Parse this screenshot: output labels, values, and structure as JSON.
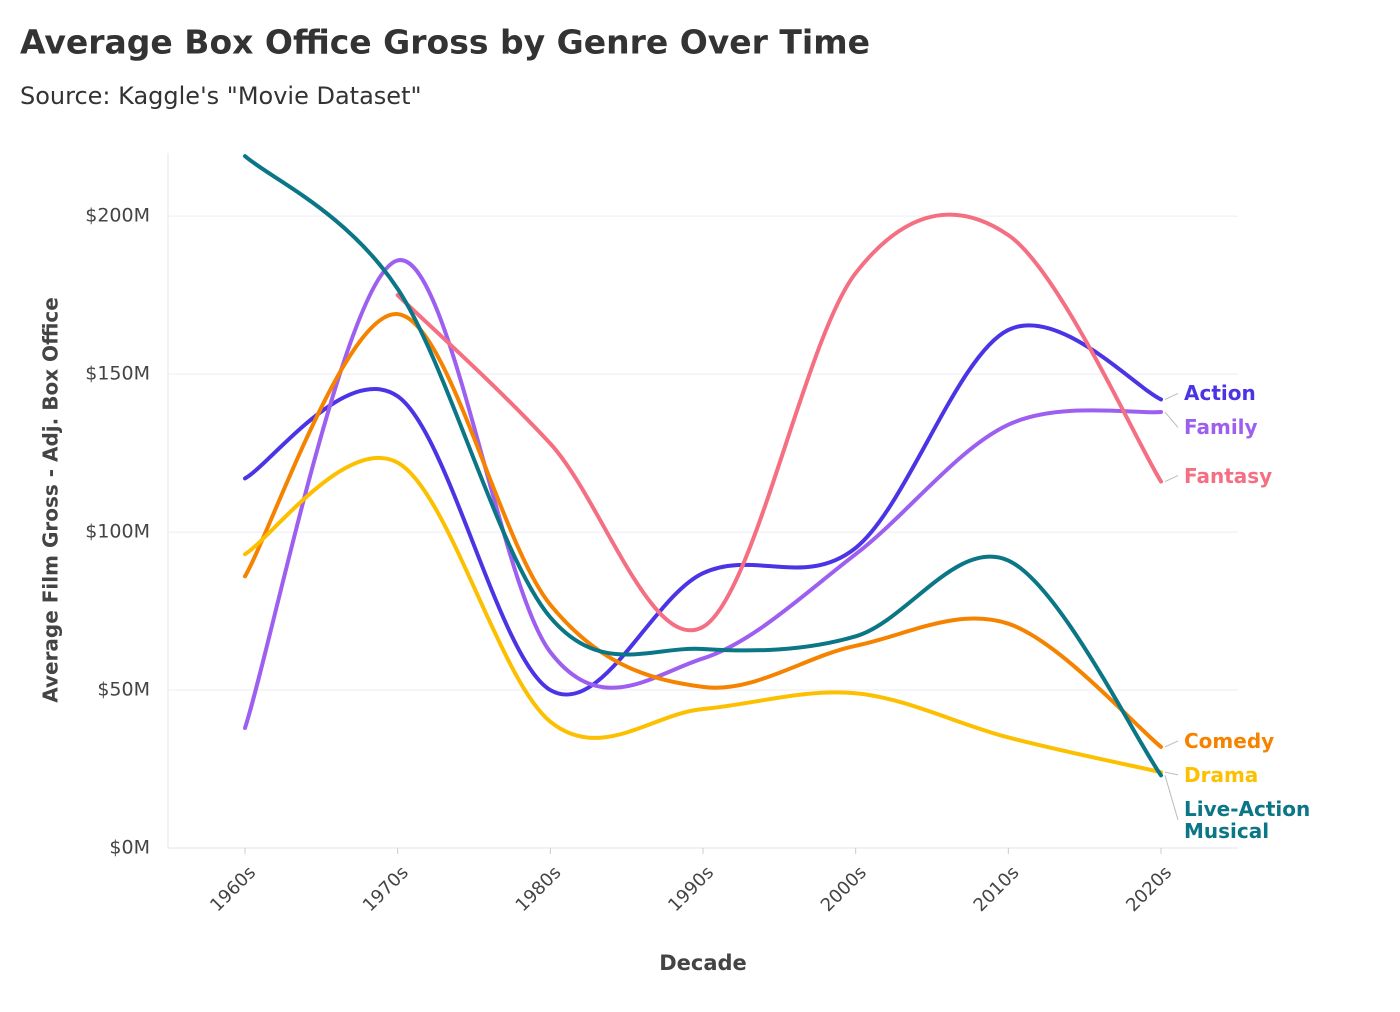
{
  "chart_data": {
    "type": "line",
    "title": "Average Box Office Gross by Genre Over Time",
    "subtitle": "Source: Kaggle's \"Movie Dataset\"",
    "x_label": "Decade",
    "y_label": "Average Film Gross - Adj. Box Office",
    "categories": [
      "1960s",
      "1970s",
      "1980s",
      "1990s",
      "2000s",
      "2010s",
      "2020s"
    ],
    "ylim": [
      0,
      220
    ],
    "yticks": [
      {
        "value": 0,
        "label": "$0M"
      },
      {
        "value": 50,
        "label": "$50M"
      },
      {
        "value": 100,
        "label": "$100M"
      },
      {
        "value": 150,
        "label": "$150M"
      },
      {
        "value": 200,
        "label": "$200M"
      }
    ],
    "grid": true,
    "series": [
      {
        "name": "Action",
        "color": "#4b34e6",
        "values": [
          117,
          143,
          50,
          87,
          95,
          164,
          142
        ]
      },
      {
        "name": "Family",
        "color": "#9d5ff0",
        "values": [
          38,
          186,
          62,
          60,
          93,
          134,
          138
        ]
      },
      {
        "name": "Fantasy",
        "color": "#f56f82",
        "values": [
          null,
          175,
          128,
          70,
          182,
          194,
          116
        ]
      },
      {
        "name": "Comedy",
        "color": "#f58300",
        "values": [
          86,
          169,
          77,
          51,
          64,
          71,
          32
        ]
      },
      {
        "name": "Drama",
        "color": "#fcc000",
        "values": [
          93,
          122,
          40,
          44,
          49,
          35,
          24
        ]
      },
      {
        "name": "Live-Action Musical",
        "color": "#0b7686",
        "values": [
          219,
          177,
          73,
          63,
          67,
          91,
          23
        ]
      }
    ]
  }
}
